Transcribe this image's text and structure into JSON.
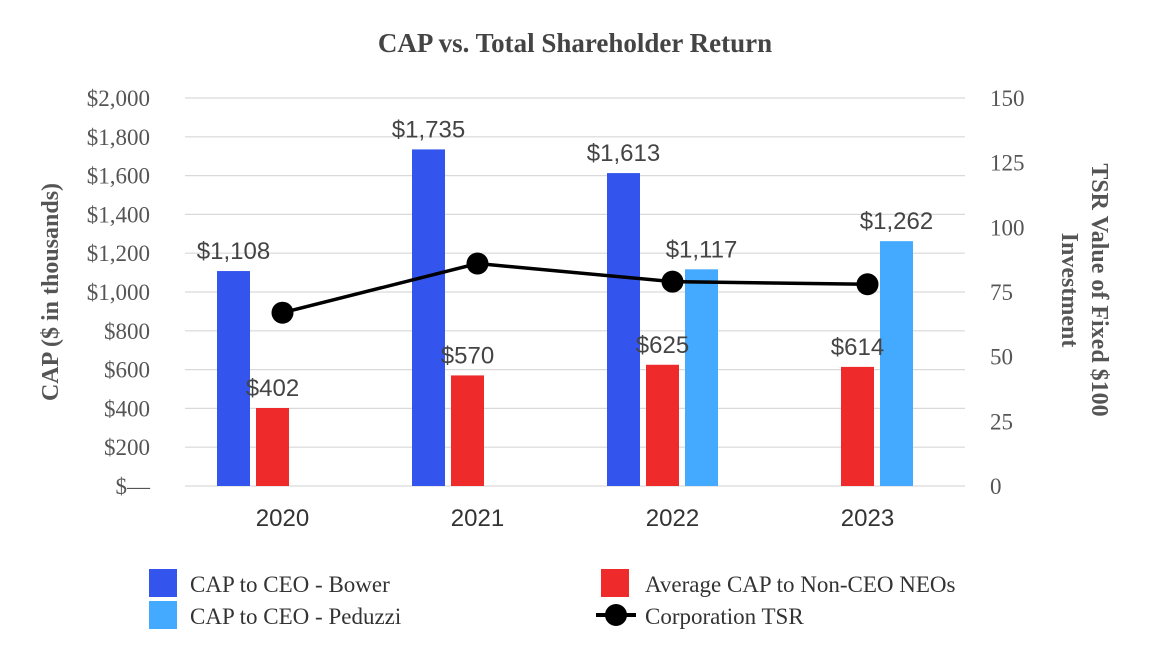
{
  "chart_data": {
    "type": "bar",
    "title": "CAP vs. Total Shareholder Return",
    "ylabel": "CAP ($ in thousands)",
    "y2label_line1": "TSR Value of Fixed $100",
    "y2label_line2": "Investment",
    "categories": [
      "2020",
      "2021",
      "2022",
      "2023"
    ],
    "ylim": [
      0,
      2000
    ],
    "y2lim": [
      0,
      150
    ],
    "y_ticks": [
      "$—",
      "$200",
      "$400",
      "$600",
      "$800",
      "$1,000",
      "$1,200",
      "$1,400",
      "$1,600",
      "$1,800",
      "$2,000"
    ],
    "y_tick_values": [
      0,
      200,
      400,
      600,
      800,
      1000,
      1200,
      1400,
      1600,
      1800,
      2000
    ],
    "y2_ticks": [
      "0",
      "25",
      "50",
      "75",
      "100",
      "125",
      "150"
    ],
    "y2_tick_values": [
      0,
      25,
      50,
      75,
      100,
      125,
      150
    ],
    "grid": true,
    "legend_position": "bottom",
    "series": [
      {
        "name": "CAP to CEO - Bower",
        "kind": "bar",
        "color": "#3355ee",
        "values": [
          1108,
          1735,
          1613,
          null
        ],
        "labels": [
          "$1,108",
          "$1,735",
          "$1,613",
          ""
        ]
      },
      {
        "name": "Average CAP to Non-CEO NEOs",
        "kind": "bar",
        "color": "#ee2a2a",
        "values": [
          402,
          570,
          625,
          614
        ],
        "labels": [
          "$402",
          "$570",
          "$625",
          "$614"
        ]
      },
      {
        "name": "CAP to CEO - Peduzzi",
        "kind": "bar",
        "color": "#44aaff",
        "values": [
          null,
          null,
          1117,
          1262
        ],
        "labels": [
          "",
          "",
          "$1,117",
          "$1,262"
        ]
      },
      {
        "name": "Corporation TSR",
        "kind": "line",
        "axis": "right",
        "color": "#000000",
        "values": [
          67,
          86,
          79,
          78
        ]
      }
    ]
  }
}
